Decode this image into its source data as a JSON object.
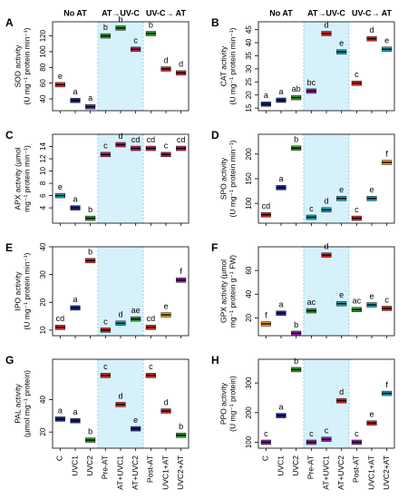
{
  "chart_data": [
    {
      "type": "box",
      "panel": "A",
      "groups": [
        "No AT",
        "AT→UV-C",
        "UV-C→ AT"
      ],
      "ylabel": [
        "SOD activity",
        "(U mg⁻¹ protein min⁻¹)"
      ],
      "values": [
        58,
        38,
        30,
        120,
        130,
        103,
        123,
        78,
        73
      ],
      "letters": [
        "e",
        "a",
        "a",
        "b",
        "b",
        "c",
        "b",
        "d",
        "d"
      ],
      "colors": [
        "#e0302a",
        "#1f2a9a",
        "#5a3aa0",
        "#2ca02c",
        "#2ca02c",
        "#c2185b",
        "#2ca02c",
        "#d62728",
        "#d62728"
      ],
      "ylim": [
        25,
        138
      ],
      "yticks": [
        40,
        60,
        80,
        100,
        120
      ]
    },
    {
      "type": "box",
      "panel": "B",
      "groups": [
        "No AT",
        "AT→UV-C",
        "UV-C→ AT"
      ],
      "ylabel": [
        "CAT activity",
        "(U mg⁻¹ protein min⁻¹)"
      ],
      "values": [
        16.5,
        18,
        19,
        21.5,
        43.5,
        36.5,
        24.5,
        41.5,
        37.5
      ],
      "letters": [
        "a",
        "a",
        "ab",
        "bc",
        "d",
        "e",
        "c",
        "d",
        "e"
      ],
      "colors": [
        "#1f2a9a",
        "#1f2a9a",
        "#2ca02c",
        "#8e24aa",
        "#d62728",
        "#17a2b8",
        "#d62728",
        "#d62728",
        "#17a2b8"
      ],
      "ylim": [
        14,
        48
      ],
      "yticks": [
        15,
        20,
        25,
        30,
        35,
        40,
        45
      ]
    },
    {
      "type": "box",
      "panel": "C",
      "ylabel": [
        "APX activity (µmol",
        "mg⁻¹ protein min⁻¹)"
      ],
      "values": [
        6,
        4,
        2.3,
        12.7,
        14.3,
        13.7,
        13.7,
        12.7,
        13.7
      ],
      "letters": [
        "e",
        "a",
        "b",
        "c",
        "d",
        "cd",
        "cd",
        "c",
        "cd"
      ],
      "colors": [
        "#17a2b8",
        "#1f2a9a",
        "#2ca02c",
        "#c2185b",
        "#c2185b",
        "#c2185b",
        "#c2185b",
        "#c2185b",
        "#c2185b"
      ],
      "ylim": [
        1.5,
        16
      ],
      "yticks": [
        4,
        6,
        8,
        10,
        12,
        14
      ]
    },
    {
      "type": "box",
      "panel": "D",
      "ylabel": [
        "SPO activity",
        "(U mg⁻¹ protein min⁻¹)"
      ],
      "values": [
        77,
        132,
        212,
        72,
        87,
        110,
        70,
        110,
        183
      ],
      "letters": [
        "cd",
        "a",
        "b",
        "c",
        "d",
        "e",
        "c",
        "e",
        "f"
      ],
      "colors": [
        "#d62728",
        "#1f2a9a",
        "#2ca02c",
        "#17a2b8",
        "#17a2b8",
        "#17a2b8",
        "#d62728",
        "#17a2b8",
        "#f39c12"
      ],
      "ylim": [
        60,
        240
      ],
      "yticks": [
        100,
        150,
        200
      ]
    },
    {
      "type": "box",
      "panel": "E",
      "ylabel": [
        "IPO activity",
        "(U mg⁻¹ protein min⁻¹)"
      ],
      "values": [
        11,
        18,
        35,
        10,
        12.5,
        14,
        11,
        15.5,
        28
      ],
      "letters": [
        "cd",
        "a",
        "b",
        "c",
        "d",
        "ae",
        "cd",
        "e",
        "f"
      ],
      "colors": [
        "#d62728",
        "#1f2a9a",
        "#d62728",
        "#d62728",
        "#17a2b8",
        "#2ca02c",
        "#d62728",
        "#f39c12",
        "#8e24aa"
      ],
      "ylim": [
        8,
        40
      ],
      "yticks": [
        10,
        20,
        30,
        40
      ]
    },
    {
      "type": "box",
      "panel": "F",
      "ylabel": [
        "GPX activity (µmol",
        "mg⁻¹ protein g⁻¹ FW)"
      ],
      "values": [
        15,
        24,
        7,
        26,
        73,
        32,
        27,
        31,
        28
      ],
      "letters": [
        "f",
        "a",
        "b",
        "ac",
        "d",
        "e",
        "ac",
        "e",
        "c"
      ],
      "colors": [
        "#f39c12",
        "#1f2a9a",
        "#8e24aa",
        "#2ca02c",
        "#d62728",
        "#17a2b8",
        "#2ca02c",
        "#17a2b8",
        "#d62728"
      ],
      "ylim": [
        5,
        80
      ],
      "yticks": [
        20,
        40,
        60
      ]
    },
    {
      "type": "box",
      "panel": "G",
      "ylabel": [
        "PAL activity",
        "(µmol mg⁻¹ protein)"
      ],
      "categories": [
        "C",
        "UVC1",
        "UVC2",
        "Pre-AT",
        "AT+UVC1",
        "AT+UVC2",
        "Post-AT",
        "UVC1+AT",
        "UVC2+AT"
      ],
      "values": [
        28,
        27,
        15,
        55,
        37,
        22,
        55,
        33,
        18
      ],
      "letters": [
        "a",
        "a",
        "b",
        "c",
        "d",
        "e",
        "c",
        "d",
        "b"
      ],
      "colors": [
        "#1f2a9a",
        "#1f2a9a",
        "#2ca02c",
        "#d62728",
        "#d62728",
        "#1f2a9a",
        "#d62728",
        "#d62728",
        "#2ca02c"
      ],
      "ylim": [
        10,
        65
      ],
      "yticks": [
        20,
        40
      ]
    },
    {
      "type": "box",
      "panel": "H",
      "ylabel": [
        "PPO activity",
        "(U mg⁻¹ protein)"
      ],
      "categories": [
        "C",
        "UVC1",
        "UVC2",
        "Pre-AT",
        "AT+UVC1",
        "AT+UVC2",
        "Post-AT",
        "UVC1+AT",
        "UVC2+AT"
      ],
      "values": [
        100,
        190,
        345,
        100,
        110,
        240,
        100,
        165,
        265
      ],
      "letters": [
        "c",
        "a",
        "b",
        "c",
        "c",
        "d",
        "c",
        "e",
        "f"
      ],
      "colors": [
        "#8e24aa",
        "#1f2a9a",
        "#2ca02c",
        "#8e24aa",
        "#8e24aa",
        "#d62728",
        "#8e24aa",
        "#d62728",
        "#17a2b8"
      ],
      "ylim": [
        80,
        380
      ],
      "yticks": [
        100,
        200,
        300
      ]
    }
  ]
}
